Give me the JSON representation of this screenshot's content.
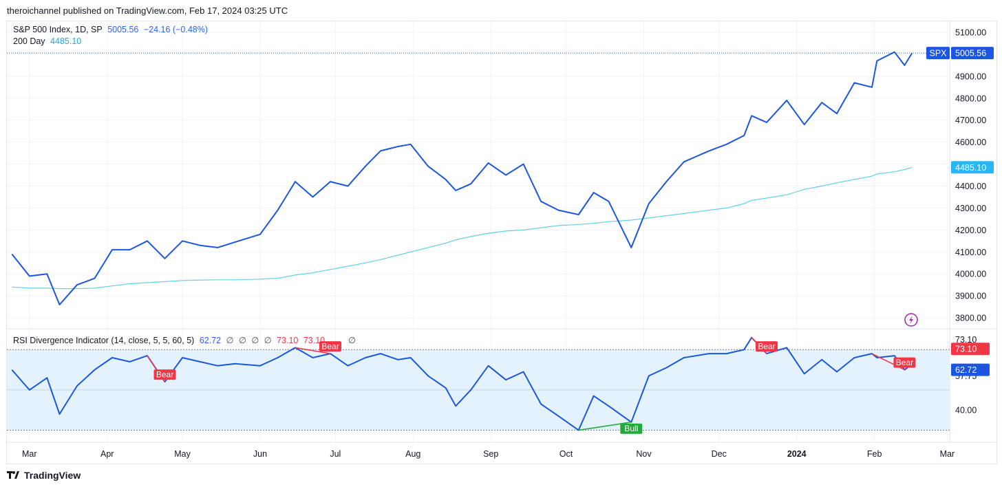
{
  "publish_line": "theroichannel published on TradingView.com, Feb 17, 2024 03:25 UTC",
  "footer_brand": "TradingView",
  "legend_main": {
    "symbol": "S&P 500 Index, 1D, SP",
    "price": "5005.56",
    "change": "−24.16 (−0.48%)",
    "ma_label": "200 Day",
    "ma_value": "4485.10"
  },
  "legend_rsi": {
    "label": "RSI Divergence Indicator (14, close, 5, 5, 60, 5)",
    "rsi_value": "62.72",
    "placeholders": [
      "∅",
      "∅",
      "∅",
      "∅"
    ],
    "bear1": "73.10",
    "bear2": "73.10",
    "trailing": "∅"
  },
  "colors": {
    "price_line": "#1a55e3",
    "ma_line": "#62cfe6",
    "bear": "#f23645",
    "bull": "#089981",
    "band_fill": "#e3f2fd",
    "grid": "#f0f3fa"
  },
  "chart_data": [
    {
      "type": "line",
      "title": "S&P 500 Index, 1D, SP",
      "x_tick_labels": [
        "Mar",
        "Apr",
        "May",
        "Jun",
        "Jul",
        "Aug",
        "Sep",
        "Oct",
        "Nov",
        "Dec",
        "2024",
        "Feb",
        "Mar"
      ],
      "y_tick_labels": [
        "5100.00",
        "4900.00",
        "4800.00",
        "4700.00",
        "4600.00",
        "4400.00",
        "4300.00",
        "4200.00",
        "4100.00",
        "4000.00",
        "3900.00",
        "3800.00"
      ],
      "ylim": [
        3750,
        5150
      ],
      "x": [
        "2023-02-22",
        "2023-03-01",
        "2023-03-08",
        "2023-03-13",
        "2023-03-20",
        "2023-03-27",
        "2023-04-03",
        "2023-04-10",
        "2023-04-17",
        "2023-04-24",
        "2023-05-01",
        "2023-05-08",
        "2023-05-15",
        "2023-05-22",
        "2023-06-01",
        "2023-06-08",
        "2023-06-15",
        "2023-06-22",
        "2023-06-29",
        "2023-07-06",
        "2023-07-13",
        "2023-07-19",
        "2023-07-26",
        "2023-07-31",
        "2023-08-07",
        "2023-08-14",
        "2023-08-18",
        "2023-08-24",
        "2023-08-31",
        "2023-09-07",
        "2023-09-14",
        "2023-09-21",
        "2023-09-28",
        "2023-10-06",
        "2023-10-12",
        "2023-10-18",
        "2023-10-27",
        "2023-11-03",
        "2023-11-10",
        "2023-11-17",
        "2023-11-27",
        "2023-12-04",
        "2023-12-11",
        "2023-12-14",
        "2023-12-20",
        "2023-12-28",
        "2024-01-04",
        "2024-01-11",
        "2024-01-17",
        "2024-01-24",
        "2024-01-31",
        "2024-02-02",
        "2024-02-09",
        "2024-02-13",
        "2024-02-16"
      ],
      "series": [
        {
          "name": "S&P 500 Index, 1D, SP",
          "values": [
            4090,
            3990,
            4000,
            3860,
            3950,
            3980,
            4110,
            4110,
            4150,
            4070,
            4150,
            4130,
            4120,
            4145,
            4180,
            4290,
            4420,
            4350,
            4420,
            4400,
            4490,
            4560,
            4580,
            4590,
            4490,
            4430,
            4380,
            4410,
            4505,
            4450,
            4500,
            4330,
            4290,
            4270,
            4370,
            4330,
            4120,
            4320,
            4420,
            4510,
            4560,
            4590,
            4630,
            4720,
            4690,
            4790,
            4680,
            4780,
            4730,
            4870,
            4850,
            4970,
            5010,
            4950,
            5005.56
          ]
        },
        {
          "name": "200 Day",
          "values": [
            3940,
            3935,
            3935,
            3933,
            3933,
            3935,
            3945,
            3955,
            3960,
            3965,
            3970,
            3972,
            3973,
            3973,
            3976,
            3980,
            3995,
            4005,
            4020,
            4035,
            4050,
            4065,
            4085,
            4100,
            4120,
            4140,
            4155,
            4170,
            4185,
            4195,
            4200,
            4210,
            4220,
            4225,
            4230,
            4238,
            4245,
            4255,
            4265,
            4275,
            4290,
            4300,
            4320,
            4335,
            4345,
            4360,
            4385,
            4400,
            4415,
            4430,
            4445,
            4455,
            4465,
            4475,
            4485.1
          ]
        }
      ],
      "last_value_labels": [
        {
          "series": "S&P 500 Index, 1D, SP",
          "tag": "SPX",
          "value": "5005.56"
        },
        {
          "series": "200 Day",
          "value": "4485.10"
        }
      ]
    },
    {
      "type": "line",
      "title": "RSI Divergence Indicator (14, close, 5, 5, 60, 5)",
      "y_tick_labels": [
        "73.10",
        "57.75",
        "57.75",
        "40.00"
      ],
      "band": [
        30,
        70
      ],
      "ylim": [
        24,
        80
      ],
      "series": [
        {
          "name": "RSI Divergence Indicator (14, close, 5, 5, 60, 5)",
          "values": [
            60,
            50,
            56,
            38,
            52,
            60,
            66,
            64,
            67,
            54,
            66,
            64,
            62,
            63,
            62,
            66,
            71,
            66,
            68,
            62,
            66,
            68,
            65,
            66,
            57,
            51,
            42,
            50,
            62,
            55,
            59,
            43,
            37,
            30,
            47,
            42,
            34,
            57,
            61,
            66,
            68,
            68,
            70,
            76,
            68,
            71,
            58,
            65,
            59,
            66,
            68,
            66,
            67,
            60,
            62.72
          ]
        }
      ],
      "annotations": [
        {
          "label": "Bear",
          "type": "bear"
        },
        {
          "label": "Bear",
          "type": "bear"
        },
        {
          "label": "Bull",
          "type": "bull"
        },
        {
          "label": "Bear",
          "type": "bear"
        },
        {
          "label": "Bear",
          "type": "bear"
        }
      ],
      "last_value_labels": [
        {
          "value": "73.10"
        },
        {
          "value": "62.72"
        }
      ]
    }
  ]
}
